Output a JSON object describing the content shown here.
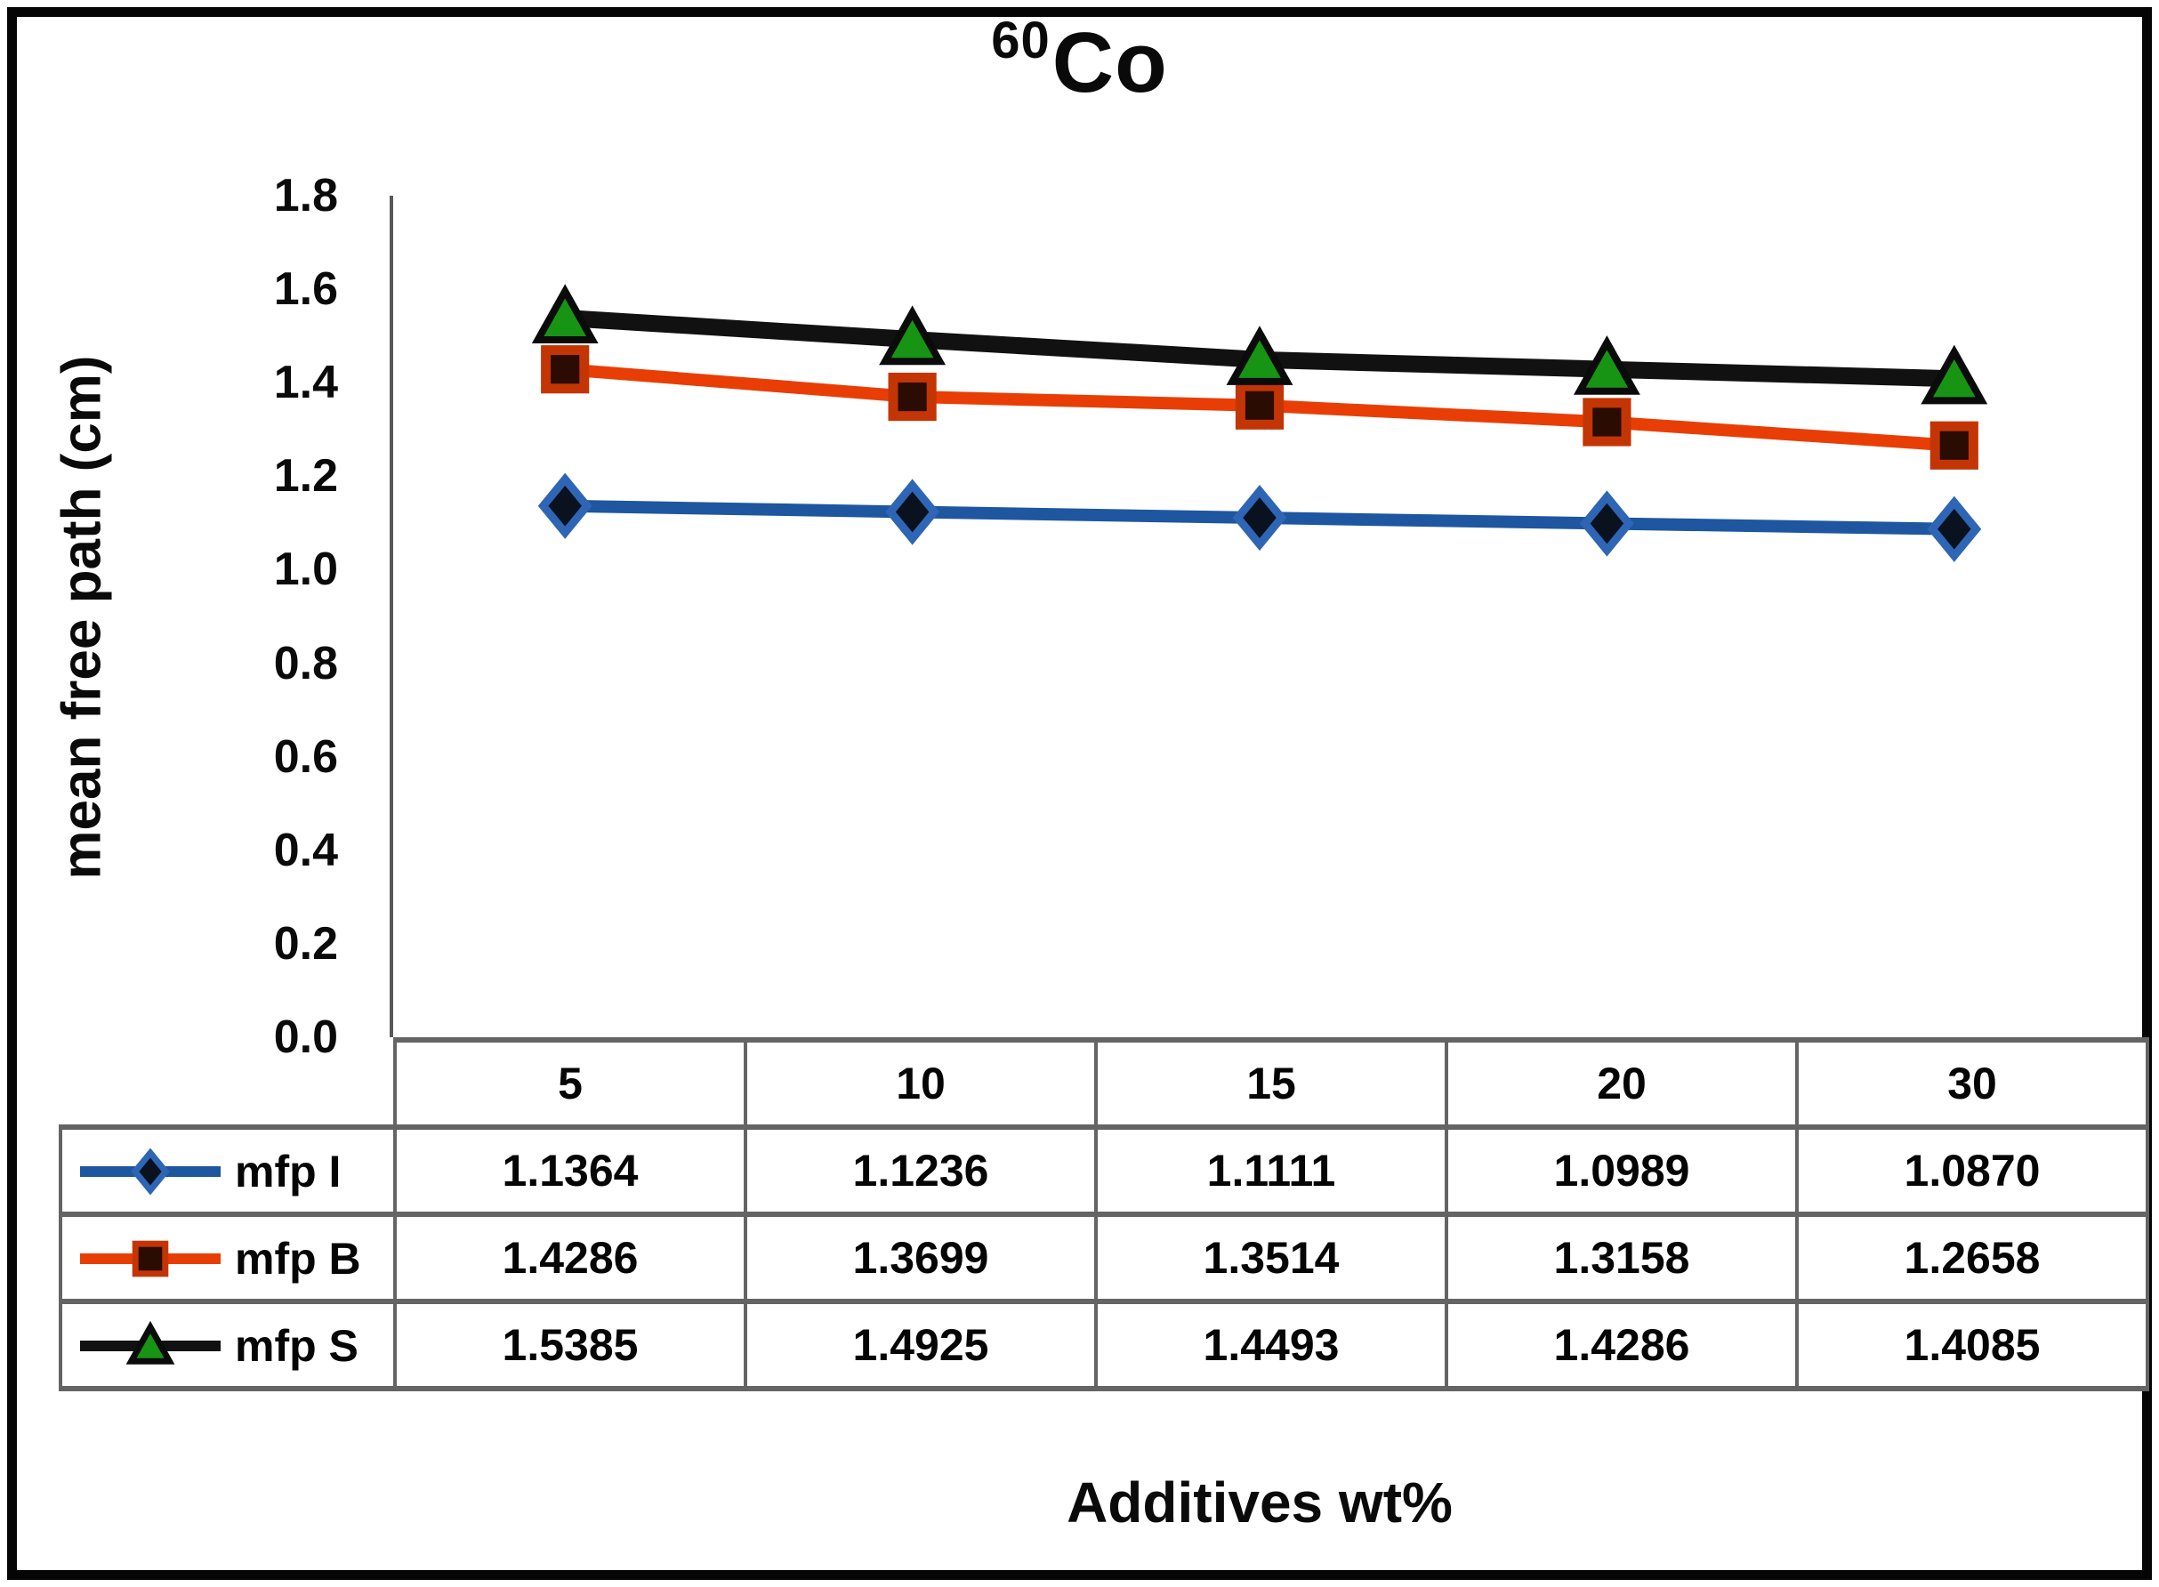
{
  "chart_data": {
    "type": "line",
    "title": "⁶⁰Co",
    "title_sup": "60",
    "title_main": "Co",
    "xlabel": "Additives wt%",
    "ylabel": "mean free path (cm)",
    "categories": [
      "5",
      "10",
      "15",
      "20",
      "30"
    ],
    "ylim": [
      0.0,
      1.8
    ],
    "ytick_step": 0.2,
    "yticks": [
      "1.8",
      "1.6",
      "1.4",
      "1.2",
      "1.0",
      "0.8",
      "0.6",
      "0.4",
      "0.2",
      "0.0"
    ],
    "grid": false,
    "legend_position": "data-table-left",
    "axis_color": "#595959",
    "table_border_color": "#646464",
    "frame_color": "#050505",
    "series": [
      {
        "name": "mfp I",
        "values": [
          1.1364,
          1.1236,
          1.1111,
          1.0989,
          1.087
        ],
        "display": [
          "1.1364",
          "1.1236",
          "1.1111",
          "1.0989",
          "1.0870"
        ],
        "line_color": "#1E56A0",
        "line_width": 14,
        "marker": "diamond",
        "marker_fill": "#0A1220",
        "marker_stroke": "#2E66B5"
      },
      {
        "name": "mfp B",
        "values": [
          1.4286,
          1.3699,
          1.3514,
          1.3158,
          1.2658
        ],
        "display": [
          "1.4286",
          "1.3699",
          "1.3514",
          "1.3158",
          "1.2658"
        ],
        "line_color": "#E83E05",
        "line_width": 14,
        "marker": "square",
        "marker_fill": "#2B0C03",
        "marker_stroke": "#C43505"
      },
      {
        "name": "mfp S",
        "values": [
          1.5385,
          1.4925,
          1.4493,
          1.4286,
          1.4085
        ],
        "display": [
          "1.5385",
          "1.4925",
          "1.4493",
          "1.4286",
          "1.4085"
        ],
        "line_color": "#111111",
        "line_width": 19,
        "marker": "triangle",
        "marker_fill": "#179413",
        "marker_stroke": "#0B0B0B"
      }
    ]
  }
}
